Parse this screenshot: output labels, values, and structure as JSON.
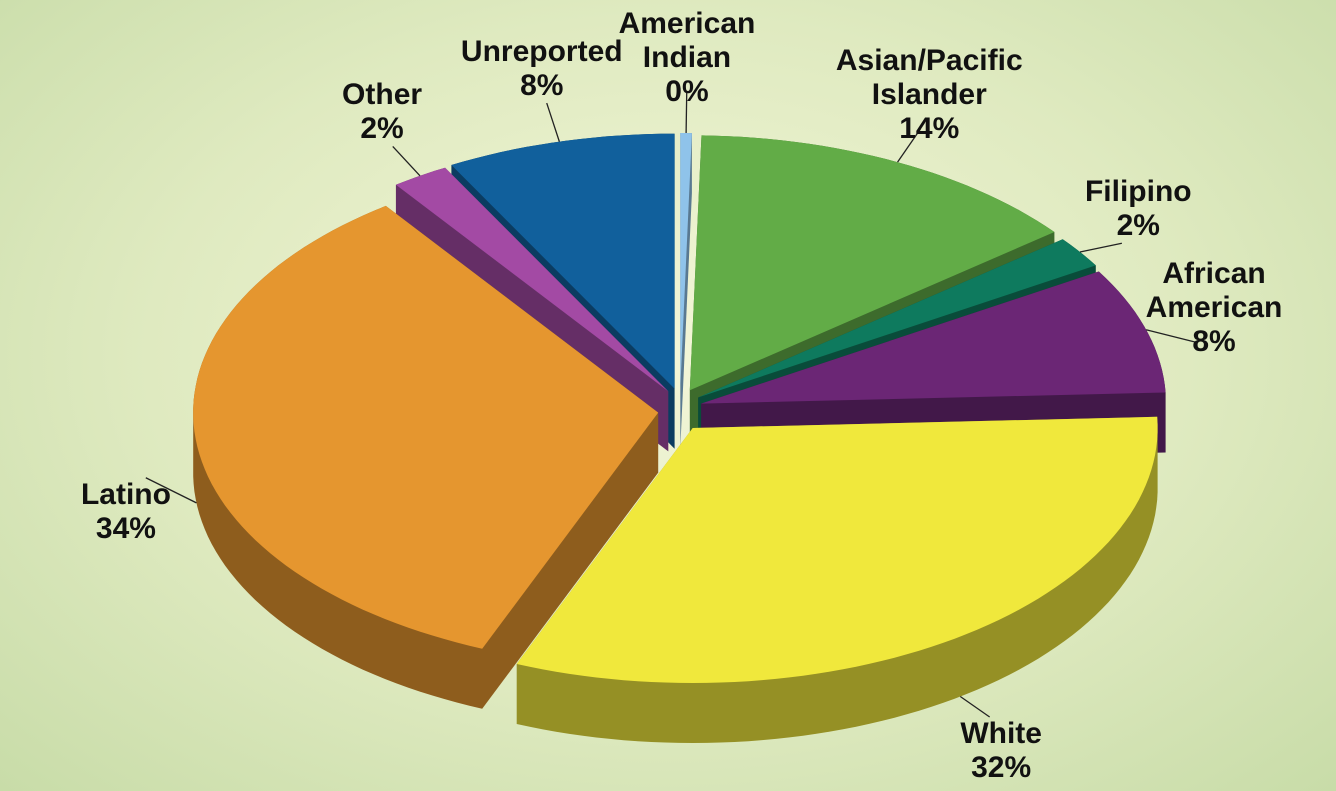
{
  "chart_data": {
    "type": "pie",
    "categories": [
      "American Indian",
      "Asian/Pacific Islander",
      "Filipino",
      "African American",
      "White",
      "Latino",
      "Other",
      "Unreported"
    ],
    "values": [
      0.4,
      14,
      2,
      8,
      32,
      34,
      2,
      8
    ],
    "value_labels": [
      "0%",
      "14%",
      "2%",
      "8%",
      "32%",
      "34%",
      "2%",
      "8%"
    ],
    "colors": [
      "#8fc3ea",
      "#62ac47",
      "#0e7a5e",
      "#6b2675",
      "#f0e83c",
      "#e5962f",
      "#a34aa4",
      "#11609c"
    ]
  }
}
